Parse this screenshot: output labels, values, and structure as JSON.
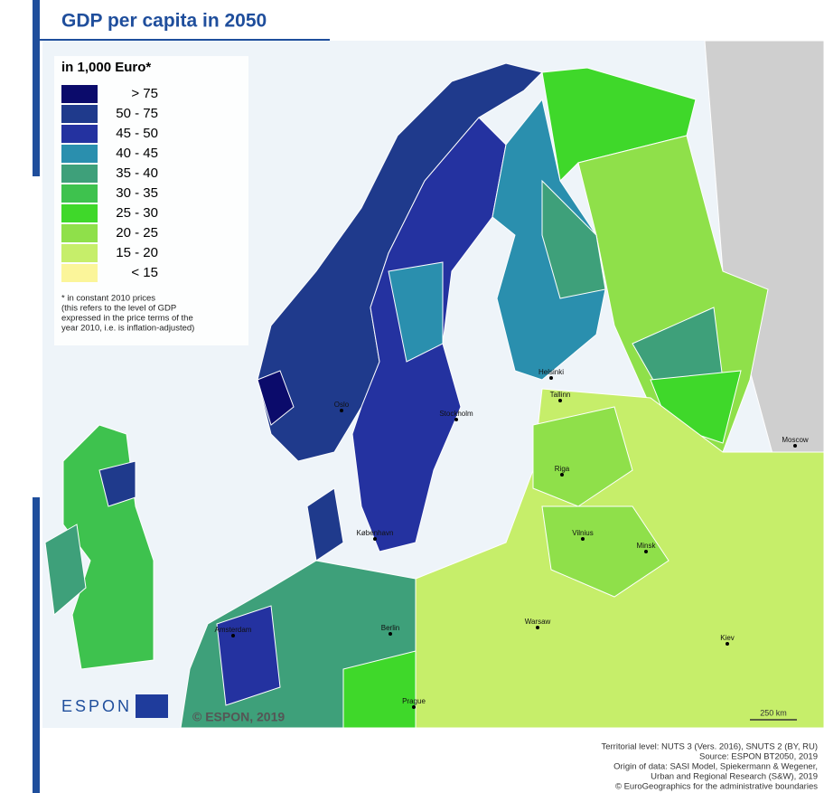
{
  "title": "GDP per capita in 2050",
  "legend": {
    "title": "in 1,000 Euro*",
    "items": [
      {
        "label": "> 75",
        "color": "#0b0b6b"
      },
      {
        "label": "50 - 75",
        "color": "#1f3a8c"
      },
      {
        "label": "45 - 50",
        "color": "#2432a0"
      },
      {
        "label": "40 - 45",
        "color": "#2a8fae"
      },
      {
        "label": "35 - 40",
        "color": "#3ea07a"
      },
      {
        "label": "30 - 35",
        "color": "#3ec24e"
      },
      {
        "label": "25 - 30",
        "color": "#3fd82a"
      },
      {
        "label": "20 - 25",
        "color": "#8fe04a"
      },
      {
        "label": "15 - 20",
        "color": "#c6ee6a"
      },
      {
        "label": "< 15",
        "color": "#fbf59a"
      }
    ],
    "note": [
      "* in constant 2010 prices",
      "(this refers to the level of GDP",
      "expressed in the price terms of the",
      "year 2010, i.e. is inflation-adjusted)"
    ]
  },
  "cities": [
    "Moscow",
    "Riga",
    "Tallinn",
    "Helsinki",
    "Stockholm",
    "Oslo",
    "København",
    "Vilnius",
    "Minsk",
    "Warsaw",
    "Kiev",
    "Berlin",
    "Amsterdam",
    "Prague"
  ],
  "logo": "ESPON",
  "copyright": "© ESPON, 2019",
  "scale_bar": "250 km",
  "footer": [
    "Territorial level: NUTS 3 (Vers. 2016), SNUTS 2 (BY, RU)",
    "Source: ESPON BT2050, 2019",
    "Origin of data: SASI Model, Spiekermann & Wegener,",
    "Urban and Regional Research (S&W), 2019",
    "© EuroGeographics for the administrative boundaries"
  ]
}
